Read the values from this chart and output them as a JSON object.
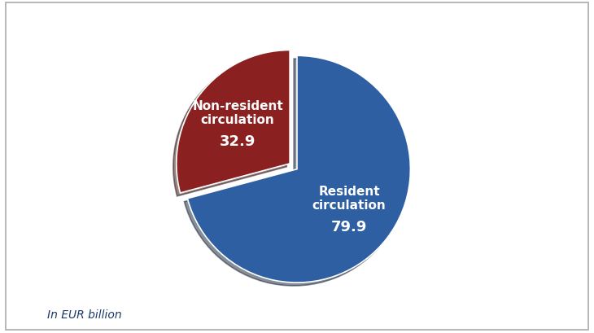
{
  "slices": [
    79.9,
    32.9
  ],
  "labels": [
    "Resident\ncirculation",
    "Non-resident\ncirculation"
  ],
  "values_display": [
    "79.9",
    "32.9"
  ],
  "colors": [
    "#2E5FA3",
    "#8B2020"
  ],
  "explode": [
    0,
    0.08
  ],
  "startangle": 90,
  "footnote": "In EUR billion",
  "background_color": "#FFFFFF",
  "border_color": "#AAAAAA",
  "text_color": "#FFFFFF",
  "label_fontsize": 11,
  "value_fontsize": 13,
  "footnote_fontsize": 10,
  "shadow": true
}
